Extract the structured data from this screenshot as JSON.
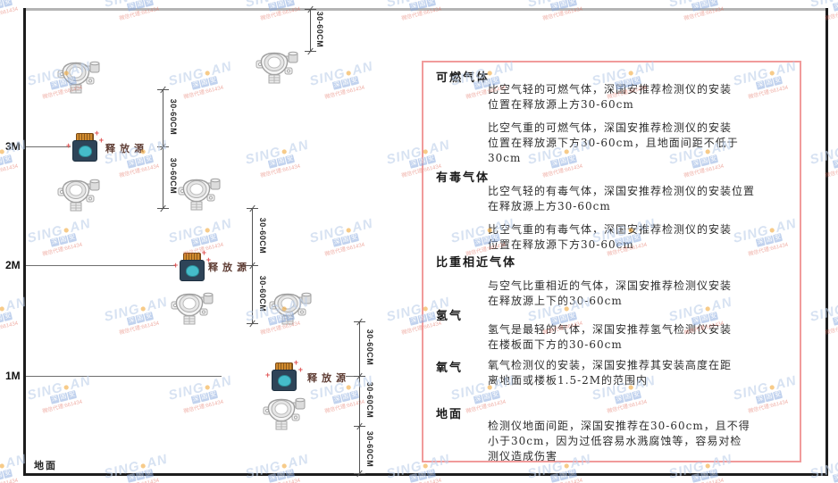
{
  "watermark": {
    "brand_prefix": "SING",
    "dot": "●",
    "brand_suffix": "AN",
    "cn": "深国安",
    "red_text": "微信代理:661434",
    "brand_color": "#bed0ea",
    "dot_color": "#f2a93b",
    "cn_tile_color": "#87a9de",
    "red_color": "#e26a5a"
  },
  "diagram": {
    "levels": [
      {
        "label": "3M"
      },
      {
        "label": "2M"
      },
      {
        "label": "1M"
      }
    ],
    "ground_label": "地面",
    "source_label": "释放源",
    "dim_label": "30-60CM",
    "line_color": "#555555",
    "source_body_color": "#2e4458",
    "source_face_color": "#45bcca",
    "source_cap_color": "#d08a2e",
    "spark_color": "#e05555"
  },
  "panel": {
    "border_color": "#f19b9b",
    "sections": [
      {
        "title": "可燃气体",
        "paras": [
          [
            "比空气轻的可燃气体，深国安推荐检测仪的安装",
            "位置在释放源上方30-60cm"
          ],
          [
            "比空气重的可燃气体，深国安推荐检测仪的安装",
            "位置在释放源下方30-60cm，且地面间距不低于",
            "30cm"
          ]
        ]
      },
      {
        "title": "有毒气体",
        "paras": [
          [
            "比空气轻的有毒气体，深国安推荐检测仪的安装位置",
            "在释放源上方30-60cm"
          ],
          [
            "比空气重的有毒气体，深国安推荐检测仪的安装",
            "位置在释放源下方30-60cm"
          ]
        ]
      },
      {
        "title": "比重相近气体",
        "paras": [
          [
            "与空气比重相近的气体，深国安推荐检测仪安装",
            "在释放源上下的30-60cm"
          ]
        ]
      },
      {
        "title": "氢气",
        "paras": [
          [
            "氢气是最轻的气体，深国安推荐氢气检测仪安装",
            "在楼板面下方的30-60cm"
          ]
        ]
      },
      {
        "title": "氧气",
        "paras": [
          [
            "氧气检测仪的安装，深国安推荐其安装高度在距",
            "离地面或楼板1.5-2M的范围内"
          ]
        ]
      },
      {
        "title": "地面",
        "paras": [
          [
            "检测仪地面间距，深国安推荐在30-60cm，且不得",
            "小于30cm，因为过低容易水溅腐蚀等，容易对检",
            "测仪造成伤害"
          ]
        ]
      }
    ]
  }
}
